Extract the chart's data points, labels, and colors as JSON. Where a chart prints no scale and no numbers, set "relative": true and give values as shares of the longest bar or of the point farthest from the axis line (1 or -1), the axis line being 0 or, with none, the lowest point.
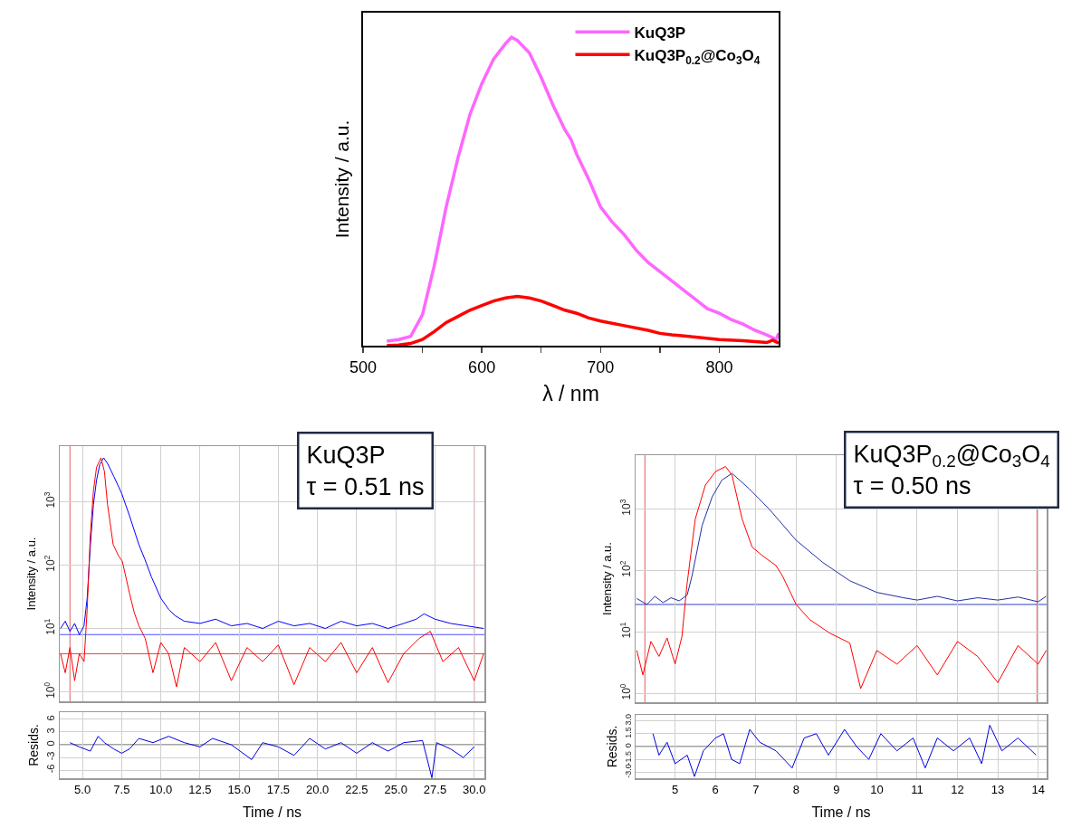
{
  "chart_data": [
    {
      "type": "line",
      "relative": true,
      "xlabel": "λ / nm",
      "ylabel": "Intensity / a.u.",
      "legend": "top right",
      "xlim": [
        500,
        850
      ],
      "xticks": [
        500,
        {
          "value": 550,
          "label": null
        },
        600,
        {
          "value": 650,
          "label": null
        },
        700,
        {
          "value": 750,
          "label": null
        },
        800
      ],
      "series": [
        {
          "name": "KuQ3P",
          "color": "#ff66ff",
          "x": [
            520,
            530,
            540,
            550,
            560,
            570,
            580,
            590,
            600,
            610,
            620,
            625,
            630,
            640,
            650,
            660,
            670,
            675,
            680,
            690,
            700,
            710,
            720,
            730,
            740,
            750,
            760,
            770,
            780,
            790,
            800,
            810,
            820,
            830,
            840,
            848,
            850
          ],
          "values": [
            0.015,
            0.02,
            0.03,
            0.1,
            0.26,
            0.45,
            0.61,
            0.75,
            0.85,
            0.93,
            0.98,
            1.0,
            0.99,
            0.95,
            0.87,
            0.78,
            0.7,
            0.67,
            0.62,
            0.54,
            0.45,
            0.4,
            0.36,
            0.31,
            0.27,
            0.24,
            0.21,
            0.18,
            0.15,
            0.12,
            0.105,
            0.085,
            0.07,
            0.05,
            0.035,
            0.02,
            0.04
          ]
        },
        {
          "name": "KuQ3P$_{0.2}$@Co$_{3}$O$_{4}$",
          "color": "#ff0000",
          "x": [
            520,
            530,
            540,
            550,
            560,
            570,
            580,
            590,
            600,
            610,
            620,
            630,
            640,
            650,
            660,
            670,
            680,
            690,
            700,
            720,
            740,
            750,
            760,
            780,
            800,
            820,
            840,
            845,
            850
          ],
          "values": [
            0.0,
            0.002,
            0.007,
            0.02,
            0.046,
            0.075,
            0.095,
            0.115,
            0.13,
            0.145,
            0.155,
            0.16,
            0.155,
            0.145,
            0.13,
            0.115,
            0.105,
            0.09,
            0.08,
            0.065,
            0.05,
            0.04,
            0.035,
            0.028,
            0.02,
            0.016,
            0.01,
            0.018,
            0.008
          ]
        }
      ]
    },
    {
      "type": "line",
      "log": "y",
      "ylabel": "Intensity / a.u.",
      "grid": true,
      "tick_labels": "y",
      "xlim": [
        3.55,
        30.65
      ],
      "xticks": [
        5,
        7.5,
        10,
        12.5,
        15,
        17.5,
        20,
        22.5,
        25,
        27.5,
        30
      ],
      "ylim": [
        0.71,
        7500
      ],
      "yticks": [
        {
          "value": 1,
          "label": "10$^{0}$"
        },
        {
          "value": 10,
          "label": "10$^{1}$"
        },
        {
          "value": 100,
          "label": "10$^{2}$"
        },
        {
          "value": 1000,
          "label": "10$^{3}$"
        }
      ],
      "annotations": [
        "KuQ3P\nτ = 0.51 ns"
      ],
      "ref_lines": [
        {
          "axis": "x",
          "value": 4.2,
          "color": "#e06060"
        },
        {
          "axis": "x",
          "value": 30,
          "color": "#e06060"
        },
        {
          "axis": "y",
          "value": 8,
          "color": "#5050ff"
        },
        {
          "axis": "y",
          "value": 4,
          "color": "#d04040"
        }
      ],
      "series": [
        {
          "color": "#0000ff",
          "x": [
            3.6,
            3.9,
            4.2,
            4.5,
            4.8,
            5.1,
            5.3,
            5.5,
            5.7,
            5.9,
            6.1,
            6.35,
            6.6,
            7.0,
            7.5,
            8.0,
            8.6,
            9.0,
            9.4,
            10.0,
            10.5,
            10.9,
            11.5,
            12.5,
            13.5,
            14.5,
            15.5,
            16.5,
            17.5,
            18.5,
            19.5,
            20.5,
            21.5,
            22.5,
            23.5,
            24.5,
            25.5,
            26.3,
            26.8,
            27.5,
            28.5,
            29.5,
            30.6
          ],
          "values": [
            10,
            13,
            9,
            12,
            8,
            11,
            30,
            200,
            900,
            2200,
            3800,
            4900,
            4000,
            2500,
            1350,
            600,
            210,
            120,
            65,
            30,
            20,
            16,
            13,
            12,
            14,
            11,
            12,
            10,
            13,
            11,
            12,
            10,
            13,
            11,
            12,
            10,
            12,
            14,
            17,
            14,
            12,
            11,
            10
          ]
        },
        {
          "color": "#ff0000",
          "x": [
            3.6,
            3.9,
            4.2,
            4.5,
            4.8,
            5.1,
            5.3,
            5.5,
            5.7,
            5.9,
            6.18,
            6.4,
            6.6,
            6.76,
            6.96,
            7.3,
            7.54,
            7.8,
            8.0,
            8.3,
            8.6,
            9.0,
            9.5,
            10,
            10.5,
            11,
            11.5,
            12.5,
            13.5,
            14.5,
            15.5,
            16.5,
            17.5,
            18.5,
            19.5,
            20.5,
            21.5,
            22.5,
            23.5,
            24.5,
            25.5,
            26.5,
            27.2,
            28,
            29,
            30,
            30.6
          ],
          "values": [
            4,
            2,
            5,
            1.5,
            4,
            3,
            20,
            300,
            1500,
            3500,
            4900,
            3000,
            900,
            470,
            210,
            140,
            115,
            60,
            36,
            18,
            11,
            7,
            2,
            6,
            4,
            1.2,
            5,
            3,
            6,
            1.5,
            5,
            3,
            5.5,
            1.3,
            5,
            3,
            6,
            2,
            5,
            1.4,
            4,
            7,
            9,
            3,
            5,
            1.5,
            4
          ]
        }
      ]
    },
    {
      "type": "line",
      "xlabel": "Time / ns",
      "ylabel": "Resids.",
      "grid": true,
      "xlim": [
        3.55,
        30.65
      ],
      "xticks": [
        {
          "value": 5,
          "label": "5.0"
        },
        7.5,
        {
          "value": 10,
          "label": "10.0"
        },
        12.5,
        {
          "value": 15,
          "label": "15.0"
        },
        17.5,
        {
          "value": 20,
          "label": "20.0"
        },
        22.5,
        {
          "value": 25,
          "label": "25.0"
        },
        27.5,
        {
          "value": 30,
          "label": "30.0"
        }
      ],
      "ylim": [
        -7.9,
        7.7
      ],
      "yticks": [
        -6,
        -3,
        0,
        3,
        6
      ],
      "ref_lines": [
        {
          "axis": "y",
          "value": 0,
          "color": "#444444"
        }
      ],
      "series": [
        {
          "color": "#0000e0",
          "x": [
            4.2,
            4.8,
            5.5,
            6.0,
            6.4,
            7.0,
            7.5,
            8.0,
            8.6,
            9.5,
            10.5,
            11.5,
            12.5,
            13.3,
            14.5,
            15.8,
            16.5,
            17.5,
            18.5,
            19.5,
            20.5,
            21.5,
            22.5,
            23.5,
            24.5,
            25.5,
            26.7,
            27.3,
            27.6,
            28.5,
            29.3,
            30
          ],
          "values": [
            0.5,
            -0.5,
            -1.5,
            2,
            0.5,
            -1,
            -2,
            -1,
            1.5,
            0.5,
            2,
            0.5,
            -0.5,
            1.5,
            0,
            -3.5,
            0.5,
            -0.5,
            -2.5,
            1.5,
            -1,
            0.5,
            -2,
            0.5,
            -1.5,
            0.5,
            1,
            -7.8,
            0.5,
            -1,
            -3,
            -0.5
          ]
        }
      ]
    },
    {
      "type": "line",
      "log": "y",
      "ylabel": "Intensity / a.u.",
      "grid": true,
      "tick_labels": "y",
      "xlim": [
        4.02,
        14.21
      ],
      "xticks": [
        5,
        6,
        7,
        8,
        9,
        10,
        11,
        12,
        13,
        14
      ],
      "ylim": [
        0.72,
        7500
      ],
      "yticks": [
        {
          "value": 1,
          "label": "10$^{0}$"
        },
        {
          "value": 10,
          "label": "10$^{1}$"
        },
        {
          "value": 100,
          "label": "10$^{2}$"
        },
        {
          "value": 1000,
          "label": "10$^{3}$"
        }
      ],
      "annotations": [
        "KuQ3P$_{0.2}$@Co$_{3}$O$_{4}$\nτ = 0.50 ns"
      ],
      "ref_lines": [
        {
          "axis": "x",
          "value": 4.25,
          "color": "#e06060"
        },
        {
          "axis": "x",
          "value": 13.97,
          "color": "#e06060"
        },
        {
          "axis": "y",
          "value": 28,
          "color": "#3040c0"
        }
      ],
      "series": [
        {
          "color": "#2030a0",
          "x": [
            4.05,
            4.3,
            4.5,
            4.7,
            4.9,
            5.1,
            5.3,
            5.42,
            5.67,
            5.92,
            6.16,
            6.41,
            6.83,
            7.33,
            8.0,
            8.66,
            9.33,
            10.0,
            10.66,
            11,
            11.5,
            12,
            12.5,
            13,
            13.5,
            14,
            14.2
          ],
          "values": [
            35,
            28,
            38,
            30,
            36,
            32,
            40,
            82,
            540,
            1580,
            2950,
            3800,
            2150,
            1000,
            310,
            135,
            68,
            44,
            36,
            33,
            38,
            32,
            36,
            33,
            37,
            31,
            38
          ]
        },
        {
          "color": "#ff0000",
          "x": [
            4.05,
            4.2,
            4.4,
            4.6,
            4.8,
            5.0,
            5.17,
            5.29,
            5.5,
            5.75,
            6.0,
            6.25,
            6.41,
            6.66,
            6.91,
            7.16,
            7.5,
            7.66,
            8.0,
            8.33,
            8.83,
            9.33,
            9.6,
            10,
            10.5,
            11,
            11.5,
            12,
            12.5,
            13,
            13.5,
            14,
            14.2
          ],
          "values": [
            5,
            2,
            7,
            4,
            8,
            3,
            8.5,
            56,
            690,
            2450,
            4050,
            4900,
            3550,
            690,
            240,
            175,
            120,
            82,
            28,
            16,
            9.6,
            6.6,
            1.2,
            5,
            3,
            6,
            2,
            7,
            4,
            1.5,
            6,
            3,
            5
          ]
        }
      ]
    },
    {
      "type": "line",
      "xlabel": "Time / ns",
      "ylabel": "Resids.",
      "grid": true,
      "xlim": [
        4.02,
        14.21
      ],
      "xticks": [
        5,
        6,
        7,
        8,
        9,
        10,
        11,
        12,
        13,
        14
      ],
      "ylim": [
        -3.7,
        3.7
      ],
      "yticks": [
        {
          "value": -3,
          "label": "-3.0"
        },
        -1.5,
        0,
        1.5,
        {
          "value": 3,
          "label": "3.0"
        }
      ],
      "ref_lines": [
        {
          "axis": "y",
          "value": 0,
          "color": "#444444"
        }
      ],
      "series": [
        {
          "color": "#0000e0",
          "x": [
            4.45,
            4.6,
            4.8,
            5.0,
            5.3,
            5.48,
            5.7,
            6.0,
            6.2,
            6.4,
            6.6,
            6.85,
            7.1,
            7.5,
            7.9,
            8.2,
            8.5,
            8.8,
            9.2,
            9.5,
            9.8,
            10.1,
            10.5,
            10.9,
            11.2,
            11.5,
            11.9,
            12.3,
            12.6,
            12.8,
            13.1,
            13.5,
            13.95
          ],
          "values": [
            1.5,
            -1,
            0.5,
            -2,
            -1,
            -3.5,
            -0.5,
            1,
            1.5,
            -1.5,
            -2,
            2,
            0.5,
            -0.5,
            -2.5,
            1,
            1.5,
            -1,
            2,
            0,
            -1.5,
            1.5,
            -0.5,
            1,
            -2.5,
            1,
            -0.5,
            1,
            -2,
            2.5,
            -0.5,
            1,
            -1
          ]
        }
      ]
    }
  ]
}
